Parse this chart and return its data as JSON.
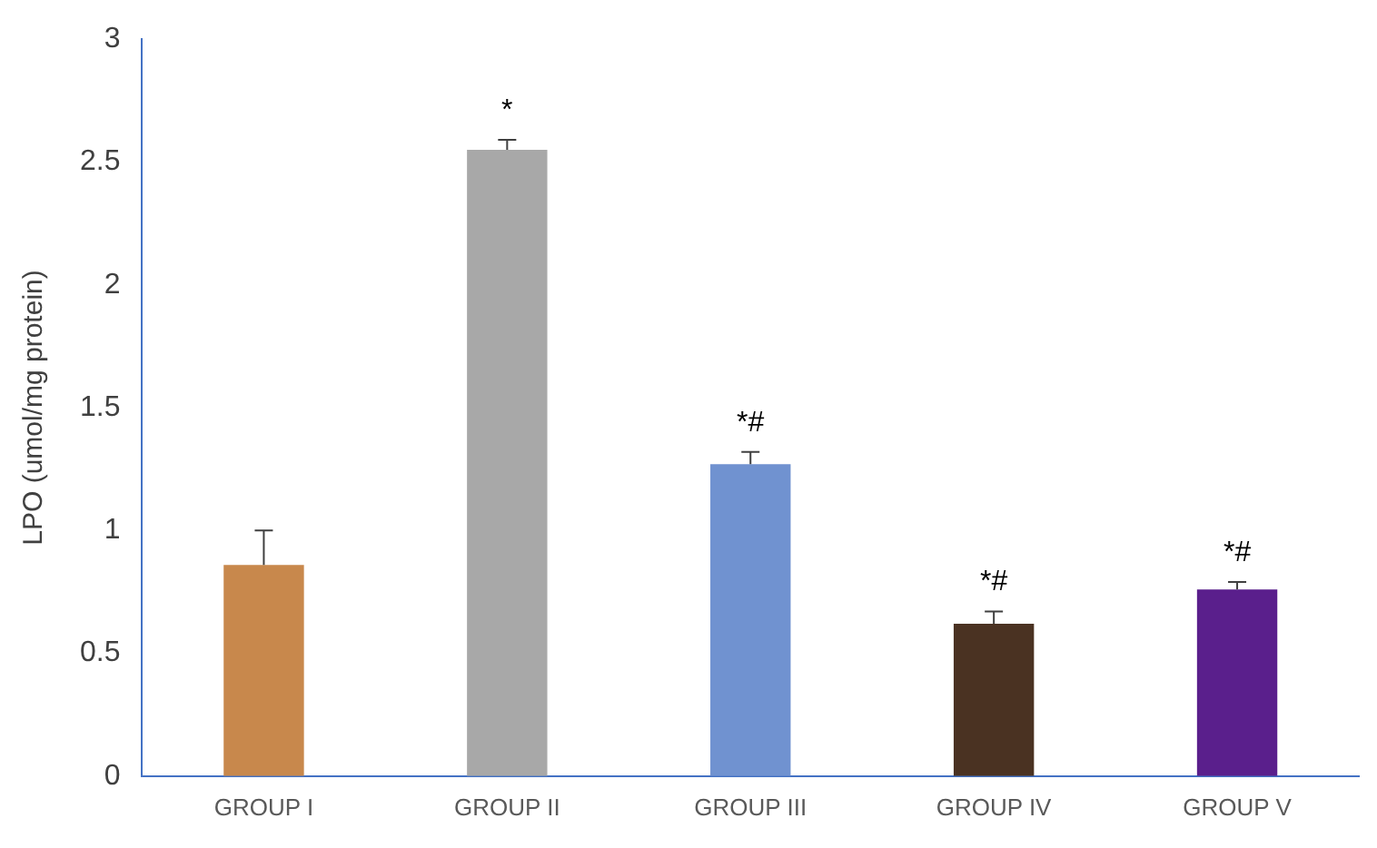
{
  "chart_data": {
    "type": "bar",
    "ylabel": "LPO (umol/mg protein)",
    "categories": [
      "GROUP I",
      "GROUP II",
      "GROUP III",
      "GROUP IV",
      "GROUP V"
    ],
    "values": [
      0.86,
      2.55,
      1.27,
      0.62,
      0.76
    ],
    "colors": [
      "#c8884c",
      "#a8a8a8",
      "#7092d0",
      "#4a3222",
      "#5a1f8c"
    ],
    "errors": [
      [
        0.86,
        1.0
      ],
      [
        2.55,
        2.59
      ],
      [
        1.27,
        1.32
      ],
      [
        0.62,
        0.67
      ],
      [
        0.76,
        0.79
      ]
    ],
    "ylim": [
      0,
      3
    ],
    "yticks": [
      0,
      0.5,
      1,
      1.5,
      2,
      2.5,
      3
    ],
    "grid": false,
    "legend": false,
    "annotations": [
      {
        "text": "*",
        "x": "GROUP II",
        "y": 2.59
      },
      {
        "text": "*#",
        "x": "GROUP III",
        "y": 1.32
      },
      {
        "text": "*#",
        "x": "GROUP IV",
        "y": 0.67
      },
      {
        "text": "*#",
        "x": "GROUP V",
        "y": 0.79
      }
    ]
  }
}
